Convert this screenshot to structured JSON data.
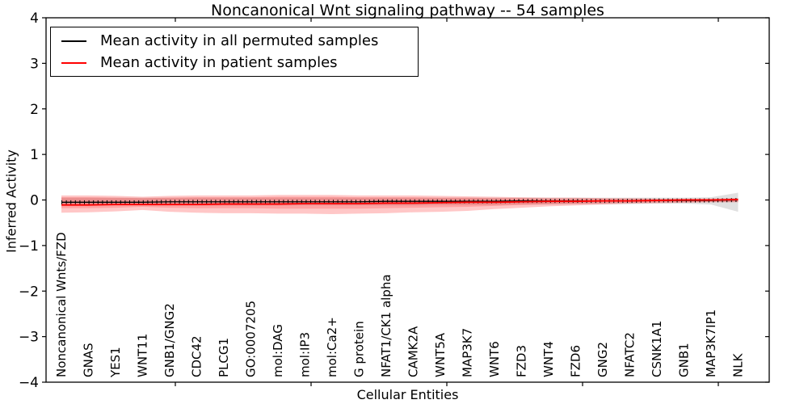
{
  "title": "Noncanonical Wnt signaling pathway -- 54 samples",
  "legend": {
    "items": [
      {
        "label": "Mean activity in all permuted samples",
        "color": "#000000"
      },
      {
        "label": "Mean activity in patient samples",
        "color": "#ff0000"
      }
    ]
  },
  "chart_data": {
    "type": "line",
    "title": "Noncanonical Wnt signaling pathway -- 54 samples",
    "xlabel": "Cellular Entities",
    "ylabel": "Inferred Activity",
    "ylim": [
      -4,
      4
    ],
    "yticks": [
      4,
      3,
      2,
      1,
      0,
      -1,
      -2,
      -3,
      -4
    ],
    "ytick_labels": [
      "4",
      "3",
      "2",
      "1",
      "0",
      "−1",
      "−2",
      "−3",
      "−4"
    ],
    "grid": false,
    "legend_position": "upper left",
    "categories": [
      "Noncanonical Wnts/FZD",
      "GNAS",
      "YES1",
      "WNT11",
      "GNB1/GNG2",
      "CDC42",
      "PLCG1",
      "GO:0007205",
      "mol:DAG",
      "mol:IP3",
      "mol:Ca2+",
      "G protein",
      "NFAT1/CK1 alpha",
      "CAMK2A",
      "WNT5A",
      "MAP3K7",
      "WNT6",
      "FZD3",
      "WNT4",
      "FZD6",
      "GNG2",
      "NFATC2",
      "CSNK1A1",
      "GNB1",
      "MAP3K7IP1",
      "NLK"
    ],
    "series": [
      {
        "name": "Mean activity in all permuted samples",
        "color": "#000000",
        "values": [
          -0.05,
          -0.05,
          -0.05,
          -0.05,
          -0.04,
          -0.04,
          -0.04,
          -0.04,
          -0.04,
          -0.04,
          -0.04,
          -0.04,
          -0.03,
          -0.03,
          -0.03,
          -0.03,
          -0.03,
          -0.02,
          -0.02,
          -0.02,
          -0.02,
          -0.02,
          -0.01,
          -0.01,
          -0.01,
          0.0
        ]
      },
      {
        "name": "Mean activity in patient samples",
        "color": "#ff0000",
        "values": [
          -0.11,
          -0.11,
          -0.1,
          -0.1,
          -0.1,
          -0.1,
          -0.09,
          -0.09,
          -0.09,
          -0.08,
          -0.08,
          -0.08,
          -0.07,
          -0.07,
          -0.06,
          -0.05,
          -0.05,
          -0.04,
          -0.03,
          -0.03,
          -0.02,
          -0.02,
          -0.01,
          0.0,
          0.0,
          0.01
        ]
      }
    ],
    "bands": [
      {
        "name": "permuted-spread",
        "color": "rgba(0,0,0,0.12)",
        "upper": [
          0.05,
          0.05,
          0.05,
          0.05,
          0.05,
          0.05,
          0.05,
          0.05,
          0.05,
          0.05,
          0.05,
          0.05,
          0.05,
          0.05,
          0.05,
          0.05,
          0.05,
          0.05,
          0.05,
          0.05,
          0.05,
          0.05,
          0.05,
          0.05,
          0.06,
          0.16
        ],
        "lower": [
          -0.12,
          -0.12,
          -0.12,
          -0.12,
          -0.12,
          -0.12,
          -0.12,
          -0.12,
          -0.12,
          -0.12,
          -0.12,
          -0.12,
          -0.12,
          -0.12,
          -0.11,
          -0.11,
          -0.11,
          -0.1,
          -0.1,
          -0.09,
          -0.09,
          -0.09,
          -0.08,
          -0.08,
          -0.1,
          -0.26
        ]
      },
      {
        "name": "patient-spread-outer",
        "color": "rgba(255,0,0,0.22)",
        "upper": [
          0.1,
          0.1,
          0.09,
          0.07,
          0.09,
          0.1,
          0.1,
          0.1,
          0.11,
          0.11,
          0.11,
          0.1,
          0.1,
          0.1,
          0.09,
          0.08,
          0.07,
          0.06,
          0.05,
          0.05,
          0.04,
          0.04,
          0.03,
          0.03,
          0.03,
          0.04
        ],
        "lower": [
          -0.28,
          -0.27,
          -0.25,
          -0.22,
          -0.26,
          -0.28,
          -0.29,
          -0.29,
          -0.3,
          -0.3,
          -0.31,
          -0.3,
          -0.29,
          -0.27,
          -0.26,
          -0.24,
          -0.2,
          -0.17,
          -0.14,
          -0.12,
          -0.1,
          -0.08,
          -0.07,
          -0.06,
          -0.05,
          -0.05
        ]
      },
      {
        "name": "patient-spread-inner",
        "color": "rgba(255,0,0,0.18)",
        "upper": [
          0.06,
          0.06,
          0.05,
          0.04,
          0.05,
          0.06,
          0.06,
          0.06,
          0.07,
          0.07,
          0.07,
          0.06,
          0.06,
          0.06,
          0.05,
          0.05,
          0.04,
          0.04,
          0.03,
          0.03,
          0.03,
          0.02,
          0.02,
          0.02,
          0.02,
          0.03
        ],
        "lower": [
          -0.18,
          -0.18,
          -0.17,
          -0.15,
          -0.17,
          -0.18,
          -0.18,
          -0.18,
          -0.19,
          -0.19,
          -0.19,
          -0.19,
          -0.18,
          -0.17,
          -0.16,
          -0.15,
          -0.13,
          -0.11,
          -0.09,
          -0.08,
          -0.07,
          -0.06,
          -0.05,
          -0.05,
          -0.04,
          -0.04
        ]
      }
    ]
  }
}
